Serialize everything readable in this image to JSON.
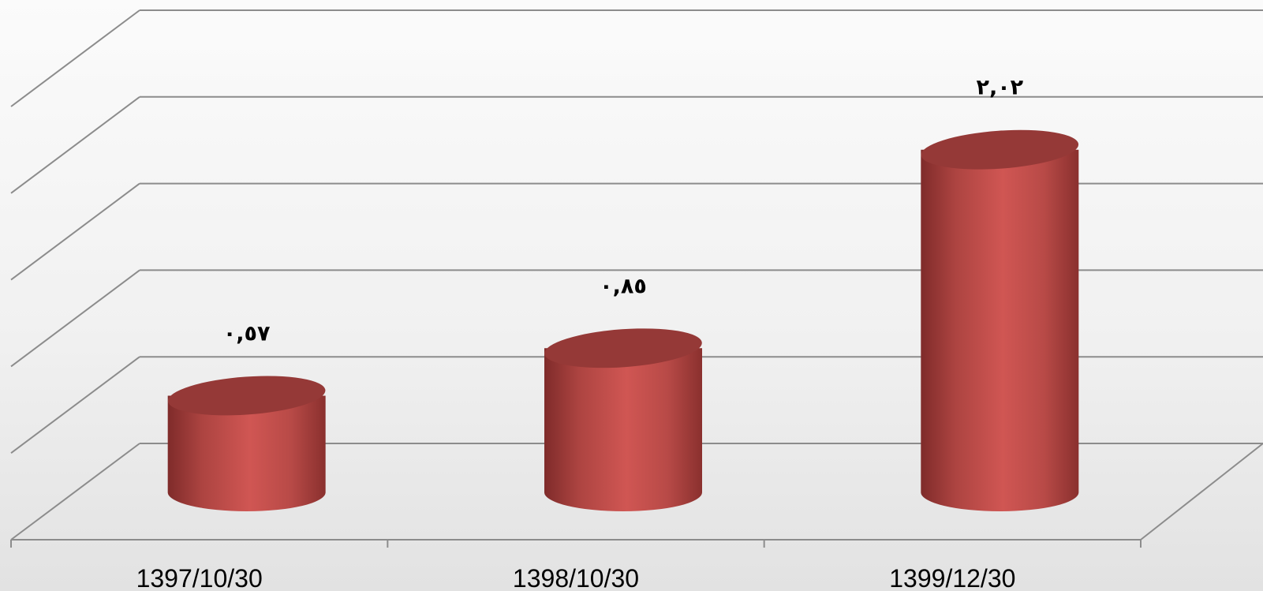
{
  "chart_data": {
    "type": "bar",
    "style": "3d-cylinder",
    "categories": [
      "1397/10/30",
      "1398/10/30",
      "1399/12/30"
    ],
    "values": [
      0.57,
      0.85,
      2.02
    ],
    "data_labels": [
      "٠,٥٧",
      "٠,٨٥",
      "٢,٠٢"
    ],
    "title": "",
    "xlabel": "",
    "ylabel": "",
    "ylim": [
      0,
      2.5
    ],
    "grid": true,
    "legend": "none",
    "bar_color": "#c0504d"
  }
}
